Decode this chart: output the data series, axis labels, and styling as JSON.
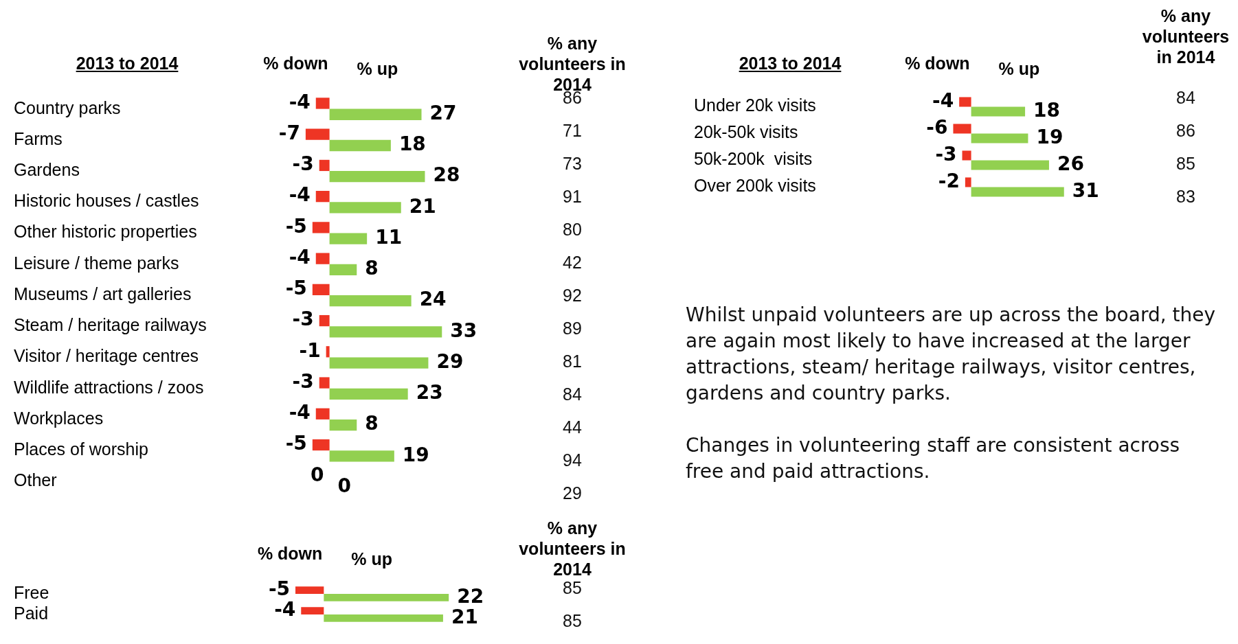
{
  "chart_data": [
    {
      "type": "bar",
      "orientation": "horizontal",
      "ylabel": "2013 to 2014",
      "data_labels": true,
      "tick_labels": "y",
      "categories": [
        "Country parks",
        "Farms",
        "Gardens",
        "Historic houses / castles",
        "Other historic properties",
        "Leisure / theme parks",
        "Museums / art galleries",
        "Steam / heritage railways",
        "Visitor / heritage centres",
        "Wildlife attractions / zoos",
        "Workplaces",
        "Places of worship",
        "Other"
      ],
      "series": [
        {
          "name": "% down",
          "color": "#ee3524",
          "values": [
            -4,
            -7,
            -3,
            -4,
            -5,
            -4,
            -5,
            -3,
            -1,
            -3,
            -4,
            -5,
            0
          ]
        },
        {
          "name": "% up",
          "color": "#92d050",
          "values": [
            27,
            18,
            28,
            21,
            11,
            8,
            24,
            33,
            29,
            23,
            8,
            19,
            0
          ]
        }
      ]
    },
    {
      "type": "other",
      "title": "% any volunteers in 2014",
      "data_labels": true,
      "values": [
        86,
        71,
        73,
        91,
        80,
        42,
        92,
        89,
        81,
        84,
        44,
        94,
        29
      ]
    },
    {
      "type": "bar",
      "orientation": "horizontal",
      "ylabel": "2013 to 2014",
      "data_labels": true,
      "tick_labels": "y",
      "categories": [
        "Under 20k visits",
        "20k-50k visits",
        "50k-200k  visits",
        "Over 200k visits"
      ],
      "series": [
        {
          "name": "% down",
          "color": "#ee3524",
          "values": [
            -4,
            -6,
            -3,
            -2
          ]
        },
        {
          "name": "% up",
          "color": "#92d050",
          "values": [
            18,
            19,
            26,
            31
          ]
        }
      ]
    },
    {
      "type": "other",
      "title": "% any volunteers in 2014",
      "data_labels": true,
      "values": [
        84,
        86,
        85,
        83
      ]
    },
    {
      "type": "bar",
      "orientation": "horizontal",
      "data_labels": true,
      "tick_labels": "y",
      "categories": [
        "Free",
        "Paid"
      ],
      "series": [
        {
          "name": "% down",
          "color": "#ee3524",
          "values": [
            -5,
            -4
          ]
        },
        {
          "name": "% up",
          "color": "#92d050",
          "values": [
            22,
            21
          ]
        }
      ]
    },
    {
      "type": "other",
      "title": "% any volunteers in 2014",
      "data_labels": true,
      "values": [
        85,
        85
      ]
    },
    {
      "type": "other",
      "annotations": [
        "Whilst unpaid volunteers are up across the board, they are again most likely to have increased at the larger attractions, steam/ heritage railways, visitor centres, gardens and country parks.",
        "Changes in volunteering staff are consistent across free and paid attractions."
      ]
    }
  ]
}
